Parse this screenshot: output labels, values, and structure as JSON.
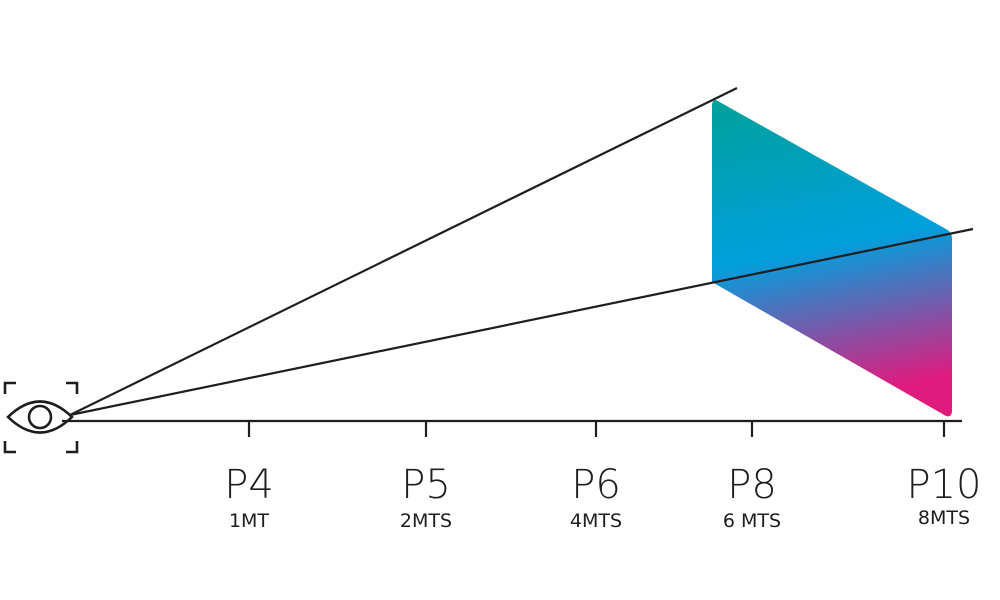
{
  "diagram": {
    "stops": [
      {
        "pitch": "P4",
        "distance": "1MT"
      },
      {
        "pitch": "P5",
        "distance": "2MTS"
      },
      {
        "pitch": "P6",
        "distance": "4MTS"
      },
      {
        "pitch": "P8",
        "distance": "6 MTS"
      },
      {
        "pitch": "P10",
        "distance": "8MTS"
      }
    ],
    "colors": {
      "line": "#1e1e1e",
      "gradient_top": "#00a19a",
      "gradient_mid": "#00a0dd",
      "gradient_bottom": "#e01b7e"
    },
    "icons": {
      "viewer": "eye-icon",
      "focus": "focus-frame-icon"
    }
  }
}
